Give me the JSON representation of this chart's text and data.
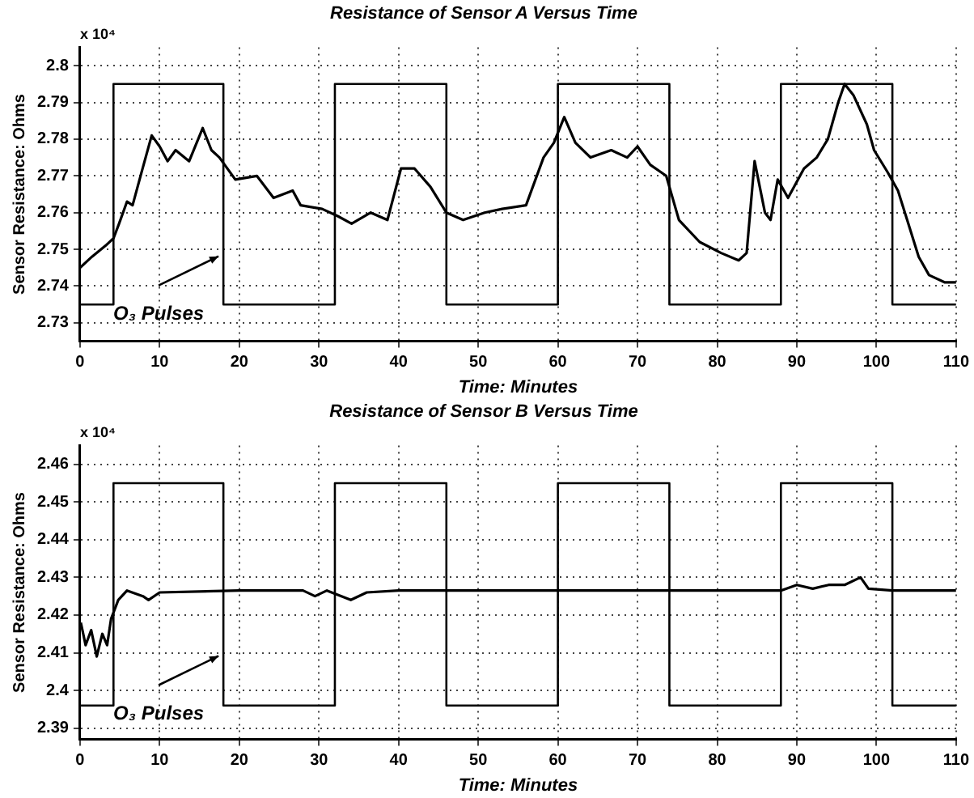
{
  "chart_data": [
    {
      "type": "line",
      "title": "Resistance of Sensor A Versus Time",
      "xlabel": "Time: Minutes",
      "ylabel": "Sensor Resistance: Ohms",
      "xlim": [
        0,
        110
      ],
      "xticks": [
        0,
        10,
        20,
        30,
        40,
        50,
        60,
        70,
        80,
        90,
        100,
        110
      ],
      "ylim": [
        2.725,
        2.805
      ],
      "yticks": [
        2.73,
        2.74,
        2.75,
        2.76,
        2.77,
        2.78,
        2.79,
        2.8
      ],
      "grid": true,
      "legend": false,
      "marker": "none",
      "line_style": "solid",
      "annotations": [
        "x 10⁴",
        {
          "text": "O₃ Pulses",
          "x": 18,
          "y": 2.749
        }
      ],
      "series": [
        {
          "type": "line",
          "color": "#000000",
          "x": [
            0,
            1.5,
            3.2,
            4.2,
            4.9,
            5.9,
            6.6,
            7.6,
            9,
            10,
            11,
            12,
            13.7,
            15.4,
            16.5,
            17.5,
            19.5,
            22.2,
            24.3,
            26.7,
            27.7,
            30.4,
            32.4,
            34.1,
            36.5,
            38.6,
            40.3,
            42,
            44,
            46,
            48.1,
            50.8,
            53,
            56,
            58.2,
            59.5,
            60.8,
            62.2,
            64.1,
            66.7,
            68.7,
            70,
            71.6,
            73.6,
            75.2,
            77.8,
            80.5,
            82.7,
            83.7,
            84.7,
            86,
            86.7,
            87.6,
            88.9,
            90.9,
            92.5,
            93.9,
            95.2,
            96,
            97.1,
            98.8,
            99.7,
            101.4,
            102.7,
            104,
            105.3,
            106.6,
            108.6,
            110
          ],
          "values": [
            2.745,
            2.748,
            2.751,
            2.753,
            2.757,
            2.763,
            2.762,
            2.77,
            2.781,
            2.778,
            2.774,
            2.777,
            2.774,
            2.783,
            2.777,
            2.775,
            2.769,
            2.77,
            2.764,
            2.766,
            2.762,
            2.761,
            2.759,
            2.757,
            2.76,
            2.758,
            2.772,
            2.772,
            2.767,
            2.76,
            2.758,
            2.76,
            2.761,
            2.762,
            2.775,
            2.779,
            2.786,
            2.779,
            2.775,
            2.777,
            2.775,
            2.778,
            2.773,
            2.77,
            2.758,
            2.752,
            2.749,
            2.747,
            2.749,
            2.774,
            2.76,
            2.758,
            2.769,
            2.764,
            2.772,
            2.775,
            2.78,
            2.79,
            2.795,
            2.792,
            2.784,
            2.777,
            2.771,
            2.766,
            2.757,
            2.748,
            2.743,
            2.741,
            2.741
          ]
        },
        {
          "type": "step",
          "color": "#000000",
          "x": [
            0,
            4.2,
            18,
            32,
            46,
            60,
            74,
            88,
            102,
            110
          ],
          "values": [
            2.735,
            2.795,
            2.735,
            2.795,
            2.735,
            2.795,
            2.735,
            2.795,
            2.735,
            2.735
          ]
        }
      ]
    },
    {
      "type": "line",
      "title": "Resistance of Sensor B Versus Time",
      "xlabel": "Time: Minutes",
      "ylabel": "Sensor Resistance: Ohms",
      "xlim": [
        0,
        110
      ],
      "xticks": [
        0,
        10,
        20,
        30,
        40,
        50,
        60,
        70,
        80,
        90,
        100,
        110
      ],
      "ylim": [
        2.387,
        2.465
      ],
      "yticks": [
        2.39,
        2.4,
        2.41,
        2.42,
        2.43,
        2.44,
        2.45,
        2.46
      ],
      "grid": true,
      "legend": false,
      "marker": "none",
      "line_style": "solid",
      "annotations": [
        "x 10⁴",
        {
          "text": "O₃ Pulses",
          "x": 18,
          "y": 2.41
        }
      ],
      "series": [
        {
          "type": "line",
          "color": "#000000",
          "x": [
            0.1,
            0.7,
            1.4,
            2.1,
            2.8,
            3.4,
            3.9,
            4.8,
            5.9,
            7.9,
            8.6,
            10,
            20,
            28,
            29.5,
            31,
            34,
            36,
            40,
            60,
            80,
            88,
            90,
            92,
            94,
            96,
            98,
            99,
            102,
            110
          ],
          "values": [
            2.418,
            2.412,
            2.416,
            2.409,
            2.415,
            2.412,
            2.419,
            2.424,
            2.4265,
            2.425,
            2.424,
            2.426,
            2.4265,
            2.4265,
            2.425,
            2.4265,
            2.424,
            2.426,
            2.4265,
            2.4265,
            2.4265,
            2.4265,
            2.428,
            2.427,
            2.428,
            2.428,
            2.43,
            2.427,
            2.4265,
            2.4265
          ]
        },
        {
          "type": "step",
          "color": "#000000",
          "x": [
            0,
            4.2,
            18,
            32,
            46,
            60,
            74,
            88,
            102,
            110
          ],
          "values": [
            2.396,
            2.455,
            2.396,
            2.455,
            2.396,
            2.455,
            2.396,
            2.455,
            2.396,
            2.396
          ]
        }
      ]
    }
  ]
}
